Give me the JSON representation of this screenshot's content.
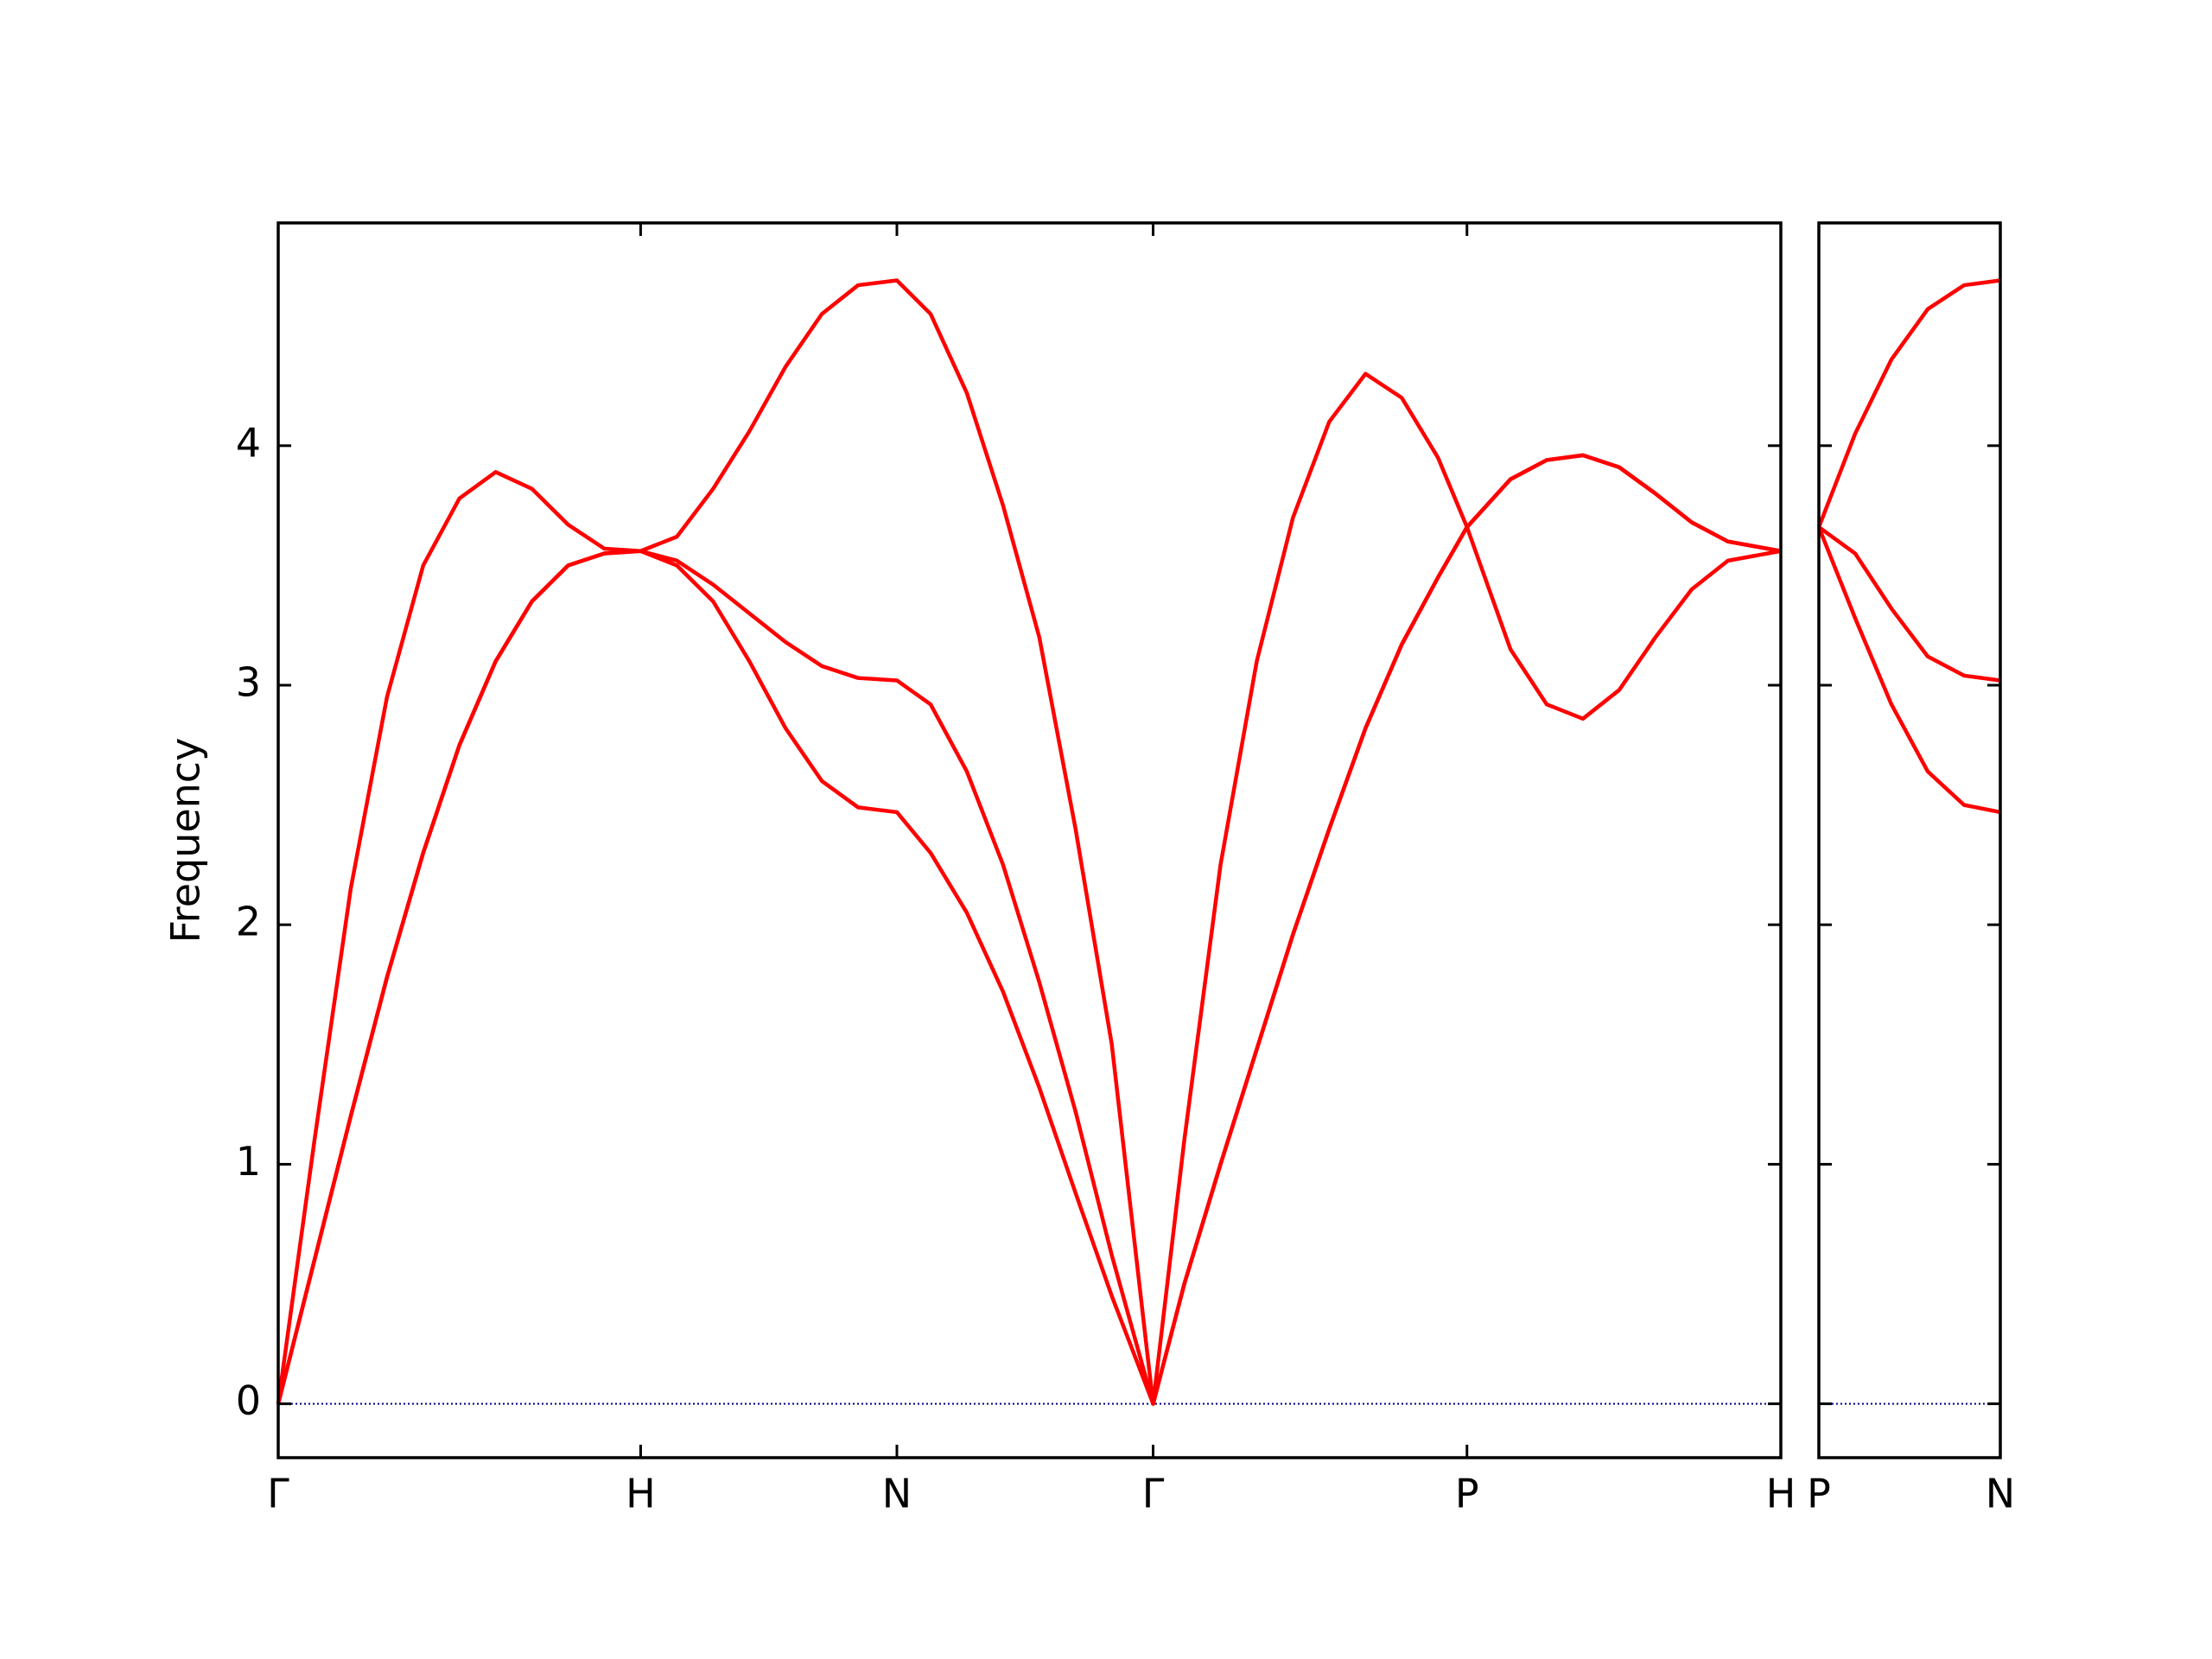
{
  "chart_data": [
    {
      "type": "line",
      "y_label": "Frequency",
      "xlim": [
        0,
        4.146
      ],
      "ylim": [
        -0.225,
        4.93
      ],
      "xticks": [
        {
          "value": 0,
          "label": "Γ"
        },
        {
          "value": 1.0,
          "label": "H"
        },
        {
          "value": 1.707,
          "label": "N"
        },
        {
          "value": 2.414,
          "label": "Γ"
        },
        {
          "value": 3.28,
          "label": "P"
        },
        {
          "value": 4.146,
          "label": "H"
        }
      ],
      "yticks": [
        0,
        1,
        2,
        3,
        4
      ],
      "show_ytick_labels": true,
      "hlines": [
        0
      ],
      "hline_color": "#00008b",
      "x": [
        0,
        0.1,
        0.2,
        0.3,
        0.4,
        0.5,
        0.6,
        0.7,
        0.8,
        0.9,
        1.0,
        1.1,
        1.2,
        1.3,
        1.4,
        1.5,
        1.6,
        1.707,
        1.8,
        1.9,
        2.0,
        2.1,
        2.2,
        2.3,
        2.414,
        2.5,
        2.6,
        2.7,
        2.8,
        2.9,
        3.0,
        3.1,
        3.2,
        3.28,
        3.4,
        3.5,
        3.6,
        3.7,
        3.8,
        3.9,
        4.0,
        4.146
      ],
      "series": [
        {
          "color": "#ff0000",
          "values": [
            0,
            0.6,
            1.2,
            1.78,
            2.3,
            2.75,
            3.1,
            3.35,
            3.5,
            3.55,
            3.56,
            3.5,
            3.35,
            3.1,
            2.82,
            2.6,
            2.49,
            2.47,
            2.3,
            2.05,
            1.72,
            1.32,
            0.88,
            0.45,
            0,
            0.5,
            1.0,
            1.48,
            1.96,
            2.4,
            2.82,
            3.17,
            3.45,
            3.66,
            3.15,
            2.92,
            2.86,
            2.98,
            3.2,
            3.4,
            3.52,
            3.56
          ]
        },
        {
          "color": "#ff0000",
          "values": [
            0,
            0.6,
            1.2,
            1.78,
            2.3,
            2.75,
            3.1,
            3.35,
            3.5,
            3.55,
            3.56,
            3.52,
            3.42,
            3.3,
            3.18,
            3.08,
            3.03,
            3.02,
            2.92,
            2.64,
            2.25,
            1.76,
            1.22,
            0.62,
            0,
            0.5,
            1.0,
            1.48,
            1.96,
            2.4,
            2.82,
            3.17,
            3.45,
            3.66,
            3.86,
            3.94,
            3.96,
            3.91,
            3.8,
            3.68,
            3.6,
            3.56
          ]
        },
        {
          "color": "#ff0000",
          "values": [
            0,
            1.1,
            2.15,
            2.95,
            3.5,
            3.78,
            3.89,
            3.82,
            3.67,
            3.57,
            3.56,
            3.62,
            3.82,
            4.06,
            4.33,
            4.55,
            4.67,
            4.69,
            4.55,
            4.22,
            3.75,
            3.2,
            2.4,
            1.5,
            0,
            1.1,
            2.25,
            3.1,
            3.7,
            4.1,
            4.3,
            4.2,
            3.95,
            3.66,
            3.86,
            3.94,
            3.96,
            3.91,
            3.8,
            3.68,
            3.6,
            3.56
          ]
        }
      ]
    },
    {
      "type": "line",
      "xlim": [
        4.146,
        4.646
      ],
      "ylim": [
        -0.225,
        4.93
      ],
      "xticks": [
        {
          "value": 4.146,
          "label": "P"
        },
        {
          "value": 4.646,
          "label": "N"
        }
      ],
      "yticks": [
        0,
        1,
        2,
        3,
        4
      ],
      "show_ytick_labels": false,
      "hlines": [
        0
      ],
      "hline_color": "#00008b",
      "x": [
        4.146,
        4.246,
        4.346,
        4.446,
        4.546,
        4.646
      ],
      "series": [
        {
          "color": "#ff0000",
          "values": [
            3.66,
            3.28,
            2.92,
            2.64,
            2.5,
            2.47
          ]
        },
        {
          "color": "#ff0000",
          "values": [
            3.66,
            3.55,
            3.32,
            3.12,
            3.04,
            3.02
          ]
        },
        {
          "color": "#ff0000",
          "values": [
            3.66,
            4.05,
            4.36,
            4.57,
            4.67,
            4.69
          ]
        }
      ]
    }
  ]
}
